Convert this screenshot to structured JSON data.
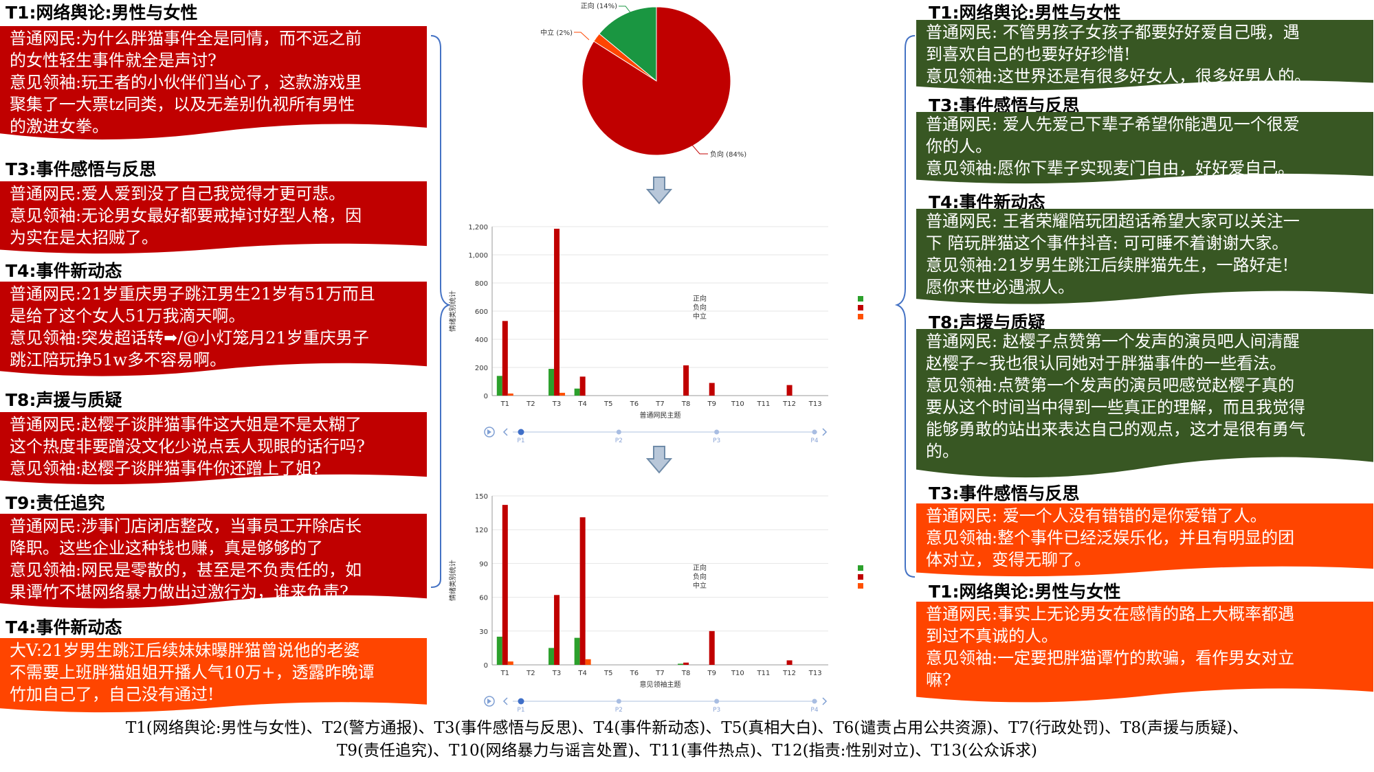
{
  "colors": {
    "red": "#c00000",
    "green": "#385723",
    "orange": "#ff4500",
    "pos": "#2ca02c",
    "neg": "#c00000",
    "neu": "#ff5000"
  },
  "left_cards": [
    {
      "title": "T1:网络舆论:男性与女性",
      "color": "red",
      "lines": [
        "普通网民:为什么胖猫事件全是同情，而不远之前",
        "的女性轻生事件就全是声讨?",
        "意见领袖:玩王者的小伙伴们当心了，这款游戏里",
        "聚集了一大票tz同类，以及无差别仇视所有男性",
        "的激进女拳。"
      ]
    },
    {
      "title": "T3:事件感悟与反思",
      "color": "red",
      "lines": [
        "普通网民:爱人爱到没了自己我觉得才更可悲。",
        "意见领袖:无论男女最好都要戒掉讨好型人格，因",
        "为实在是太招贼了。"
      ]
    },
    {
      "title": "T4:事件新动态",
      "color": "red",
      "lines": [
        "普通网民:21岁重庆男子跳江男生21岁有51万而且",
        "是给了这个女人51万我滴天啊。",
        "意见领袖:突发超话转➡/@小灯笼月21岁重庆男子",
        "跳江陪玩挣51w多不容易啊。"
      ]
    },
    {
      "title": "T8:声援与质疑",
      "color": "red",
      "lines": [
        "普通网民:赵樱子谈胖猫事件这大姐是不是太糊了",
        "这个热度非要蹭没文化少说点丢人现眼的话行吗?",
        "意见领袖:赵樱子谈胖猫事件你还蹭上了姐?"
      ]
    },
    {
      "title": "T9:责任追究",
      "color": "red",
      "lines": [
        "普通网民:涉事门店闭店整改，当事员工开除店长",
        "降职。这些企业这种钱也赚，真是够够的了",
        "意见领袖:网民是零散的，甚至是不负责任的，如",
        "果谭竹不堪网络暴力做出过激行为，谁来负责?"
      ]
    },
    {
      "title": "T4:事件新动态",
      "color": "orange",
      "lines": [
        "大V:21岁男生跳江后续妹妹曝胖猫曾说他的老婆",
        "不需要上班胖猫姐姐开播人气10万+，透露昨晚谭",
        "竹加自己了，自己没有通过!"
      ]
    }
  ],
  "right_cards": [
    {
      "title": "T1:网络舆论:男性与女性",
      "color": "green",
      "lines": [
        "普通网民: 不管男孩子女孩子都要好好爱自己哦，遇",
        "到喜欢自己的也要好好珍惜!",
        "意见领袖:这世界还是有很多好女人，很多好男人的。"
      ]
    },
    {
      "title": "T3:事件感悟与反思",
      "color": "green",
      "lines": [
        "普通网民: 爱人先爱己下辈子希望你能遇见一个很爱",
        "你的人。",
        "意见领袖:愿你下辈子实现麦门自由，好好爱自己。"
      ]
    },
    {
      "title": "T4:事件新动态",
      "color": "green",
      "lines": [
        "普通网民: 王者荣耀陪玩团超话希望大家可以关注一",
        "下 陪玩胖猫这个事件抖音: 可可睡不着谢谢大家。",
        "意见领袖:21岁男生跳江后续胖猫先生，一路好走!",
        "愿你来世必遇淑人。"
      ]
    },
    {
      "title": "T8:声援与质疑",
      "color": "green",
      "lines": [
        "普通网民: 赵樱子点赞第一个发声的演员吧人间清醒",
        "赵樱子~我也很认同她对于胖猫事件的一些看法。",
        "意见领袖:点赞第一个发声的演员吧感觉赵樱子真的",
        "要从这个时间当中得到一些真正的理解，而且我觉得",
        "能够勇敢的站出来表达自己的观点，这才是很有勇气",
        "的。"
      ]
    },
    {
      "title": "T3:事件感悟与反思",
      "color": "orange",
      "lines": [
        "普通网民: 爱一个人没有错错的是你爱错了人。",
        "意见领袖:整个事件已经泛娱乐化，并且有明显的团",
        "体对立，变得无聊了。"
      ]
    },
    {
      "title": "T1:网络舆论:男性与女性",
      "color": "orange",
      "lines": [
        "普通网民:事实上无论男女在感情的路上大概率都遇",
        "到过不真诚的人。",
        "意见领袖:一定要把胖猫谭竹的欺骗，看作男女对立",
        "嘛?"
      ]
    }
  ],
  "footer": {
    "line1": "T1(网络舆论:男性与女性)、T2(警方通报)、T3(事件感悟与反思)、T4(事件新动态)、T5(真相大白)、T6(谴责占用公共资源)、T7(行政处罚)、T8(声援与质疑)、",
    "line2": "T9(责任追究)、T10(网络暴力与谣言处置)、T11(事件热点)、T12(指责:性别对立)、T13(公众诉求)"
  },
  "chart_data": [
    {
      "type": "pie",
      "slices": [
        {
          "label": "正向 (14%)",
          "value": 14,
          "color": "#1a9641"
        },
        {
          "label": "中立 (2%)",
          "value": 2,
          "color": "#ff4500"
        },
        {
          "label": "负向 (84%)",
          "value": 84,
          "color": "#c00000"
        }
      ]
    },
    {
      "type": "bar",
      "categories": [
        "T1",
        "T2",
        "T3",
        "T4",
        "T5",
        "T6",
        "T7",
        "T8",
        "T9",
        "T10",
        "T11",
        "T12",
        "T13"
      ],
      "series": [
        {
          "name": "正向",
          "values": [
            140,
            0,
            190,
            50,
            0,
            0,
            0,
            0,
            0,
            0,
            0,
            0,
            0
          ]
        },
        {
          "name": "负向",
          "values": [
            530,
            0,
            1185,
            135,
            0,
            0,
            0,
            215,
            90,
            0,
            0,
            75,
            0
          ]
        },
        {
          "name": "中立",
          "values": [
            15,
            0,
            20,
            0,
            0,
            0,
            0,
            0,
            0,
            0,
            0,
            0,
            0
          ]
        }
      ],
      "ylabel": "情绪类别统计",
      "xlabel": "普通网民主题",
      "ylim": [
        0,
        1200
      ],
      "yticks": [
        0,
        200,
        400,
        600,
        800,
        "1,000",
        "1,200"
      ],
      "timeline": [
        "P1",
        "P2",
        "P3",
        "P4"
      ]
    },
    {
      "type": "bar",
      "categories": [
        "T1",
        "T2",
        "T3",
        "T4",
        "T5",
        "T6",
        "T7",
        "T8",
        "T9",
        "T10",
        "T11",
        "T12",
        "T13"
      ],
      "series": [
        {
          "name": "正向",
          "values": [
            25,
            0,
            15,
            24,
            0,
            0,
            0,
            1,
            0,
            0,
            0,
            0,
            0
          ]
        },
        {
          "name": "负向",
          "values": [
            142,
            0,
            62,
            131,
            0,
            0,
            0,
            2,
            30,
            0,
            0,
            4,
            0
          ]
        },
        {
          "name": "中立",
          "values": [
            3,
            0,
            0,
            5,
            0,
            0,
            0,
            0,
            0,
            0,
            0,
            0,
            0
          ]
        }
      ],
      "ylabel": "情绪类别统计",
      "xlabel": "意见领袖主题",
      "ylim": [
        0,
        150
      ],
      "yticks": [
        0,
        30,
        60,
        90,
        120,
        150
      ],
      "timeline": [
        "P1",
        "P2",
        "P3",
        "P4"
      ]
    }
  ]
}
